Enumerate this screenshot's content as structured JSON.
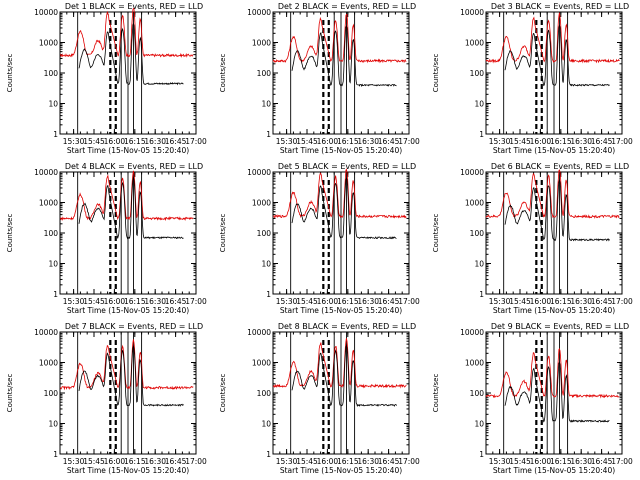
{
  "colors": {
    "events": "#000000",
    "lld": "#e00000",
    "axis": "#000000",
    "background": "#ffffff"
  },
  "chart_data": [
    {
      "type": "line",
      "title": "Det  1 BLACK = Events, RED = LLD",
      "xlabel": "Start Time (15-Nov-05 15:20:40)",
      "ylabel": "Counts/sec",
      "yscale": "log",
      "ylim": [
        1,
        10000
      ],
      "xlim": [
        "15:20",
        "17:00"
      ],
      "xticks": [
        "15:30",
        "15:45",
        "16:00",
        "16:15",
        "16:30",
        "16:45",
        "17:00"
      ],
      "yticks": [
        "1",
        "10",
        "100",
        "1000",
        "10000"
      ],
      "series": [
        {
          "name": "Events",
          "color": "#000000"
        },
        {
          "name": "LLD",
          "color": "#e00000"
        }
      ],
      "base_events": 45,
      "base_lld": 380
    },
    {
      "type": "line",
      "title": "Det  2 BLACK = Events, RED = LLD",
      "xlabel": "Start Time (15-Nov-05 15:20:40)",
      "ylabel": "Counts/sec",
      "yscale": "log",
      "ylim": [
        1,
        10000
      ],
      "xlim": [
        "15:20",
        "17:00"
      ],
      "xticks": [
        "15:30",
        "15:45",
        "16:00",
        "16:15",
        "16:30",
        "16:45",
        "17:00"
      ],
      "yticks": [
        "1",
        "10",
        "100",
        "1000",
        "10000"
      ],
      "series": [
        {
          "name": "Events",
          "color": "#000000"
        },
        {
          "name": "LLD",
          "color": "#e00000"
        }
      ],
      "base_events": 40,
      "base_lld": 250
    },
    {
      "type": "line",
      "title": "Det  3 BLACK = Events, RED = LLD",
      "xlabel": "Start Time (15-Nov-05 15:20:40)",
      "ylabel": "Counts/sec",
      "yscale": "log",
      "ylim": [
        1,
        10000
      ],
      "xlim": [
        "15:20",
        "17:00"
      ],
      "xticks": [
        "15:30",
        "15:45",
        "16:00",
        "16:15",
        "16:30",
        "16:45",
        "17:00"
      ],
      "yticks": [
        "1",
        "10",
        "100",
        "1000",
        "10000"
      ],
      "series": [
        {
          "name": "Events",
          "color": "#000000"
        },
        {
          "name": "LLD",
          "color": "#e00000"
        }
      ],
      "base_events": 40,
      "base_lld": 250
    },
    {
      "type": "line",
      "title": "Det  4 BLACK = Events, RED = LLD",
      "xlabel": "Start Time (15-Nov-05 15:20:40)",
      "ylabel": "Counts/sec",
      "yscale": "log",
      "ylim": [
        1,
        10000
      ],
      "xlim": [
        "15:20",
        "17:00"
      ],
      "xticks": [
        "15:30",
        "15:45",
        "16:00",
        "16:15",
        "16:30",
        "16:45",
        "17:00"
      ],
      "yticks": [
        "1",
        "10",
        "100",
        "1000",
        "10000"
      ],
      "series": [
        {
          "name": "Events",
          "color": "#000000"
        },
        {
          "name": "LLD",
          "color": "#e00000"
        }
      ],
      "base_events": 70,
      "base_lld": 300
    },
    {
      "type": "line",
      "title": "Det  5 BLACK = Events, RED = LLD",
      "xlabel": "Start Time (15-Nov-05 15:20:40)",
      "ylabel": "Counts/sec",
      "yscale": "log",
      "ylim": [
        1,
        10000
      ],
      "xlim": [
        "15:20",
        "17:00"
      ],
      "xticks": [
        "15:30",
        "15:45",
        "16:00",
        "16:15",
        "16:30",
        "16:45",
        "17:00"
      ],
      "yticks": [
        "1",
        "10",
        "100",
        "1000",
        "10000"
      ],
      "series": [
        {
          "name": "Events",
          "color": "#000000"
        },
        {
          "name": "LLD",
          "color": "#e00000"
        }
      ],
      "base_events": 70,
      "base_lld": 350
    },
    {
      "type": "line",
      "title": "Det  6 BLACK = Events, RED = LLD",
      "xlabel": "Start Time (15-Nov-05 15:20:40)",
      "ylabel": "Counts/sec",
      "yscale": "log",
      "ylim": [
        1,
        10000
      ],
      "xlim": [
        "15:20",
        "17:00"
      ],
      "xticks": [
        "15:30",
        "15:45",
        "16:00",
        "16:15",
        "16:30",
        "16:45",
        "17:00"
      ],
      "yticks": [
        "1",
        "10",
        "100",
        "1000",
        "10000"
      ],
      "series": [
        {
          "name": "Events",
          "color": "#000000"
        },
        {
          "name": "LLD",
          "color": "#e00000"
        }
      ],
      "base_events": 60,
      "base_lld": 350
    },
    {
      "type": "line",
      "title": "Det  7 BLACK = Events, RED = LLD",
      "xlabel": "Start Time (15-Nov-05 15:20:40)",
      "ylabel": "Counts/sec",
      "yscale": "log",
      "ylim": [
        1,
        10000
      ],
      "xlim": [
        "15:20",
        "17:00"
      ],
      "xticks": [
        "15:30",
        "15:45",
        "16:00",
        "16:15",
        "16:30",
        "16:45",
        "17:00"
      ],
      "yticks": [
        "1",
        "10",
        "100",
        "1000",
        "10000"
      ],
      "series": [
        {
          "name": "Events",
          "color": "#000000"
        },
        {
          "name": "LLD",
          "color": "#e00000"
        }
      ],
      "base_events": 40,
      "base_lld": 150
    },
    {
      "type": "line",
      "title": "Det  8 BLACK = Events, RED = LLD",
      "xlabel": "Start Time (15-Nov-05 15:20:40)",
      "ylabel": "Counts/sec",
      "yscale": "log",
      "ylim": [
        1,
        10000
      ],
      "xlim": [
        "15:20",
        "17:00"
      ],
      "xticks": [
        "15:30",
        "15:45",
        "16:00",
        "16:15",
        "16:30",
        "16:45",
        "17:00"
      ],
      "yticks": [
        "1",
        "10",
        "100",
        "1000",
        "10000"
      ],
      "series": [
        {
          "name": "Events",
          "color": "#000000"
        },
        {
          "name": "LLD",
          "color": "#e00000"
        }
      ],
      "base_events": 40,
      "base_lld": 170
    },
    {
      "type": "line",
      "title": "Det  9 BLACK = Events, RED = LLD",
      "xlabel": "Start Time (15-Nov-05 15:20:40)",
      "ylabel": "Counts/sec",
      "yscale": "log",
      "ylim": [
        1,
        10000
      ],
      "xlim": [
        "15:20",
        "17:00"
      ],
      "xticks": [
        "15:30",
        "15:45",
        "16:00",
        "16:15",
        "16:30",
        "16:45",
        "17:00"
      ],
      "yticks": [
        "1",
        "10",
        "100",
        "1000",
        "10000"
      ],
      "series": [
        {
          "name": "Events",
          "color": "#000000"
        },
        {
          "name": "LLD",
          "color": "#e00000"
        }
      ],
      "base_events": 12,
      "base_lld": 80
    }
  ]
}
